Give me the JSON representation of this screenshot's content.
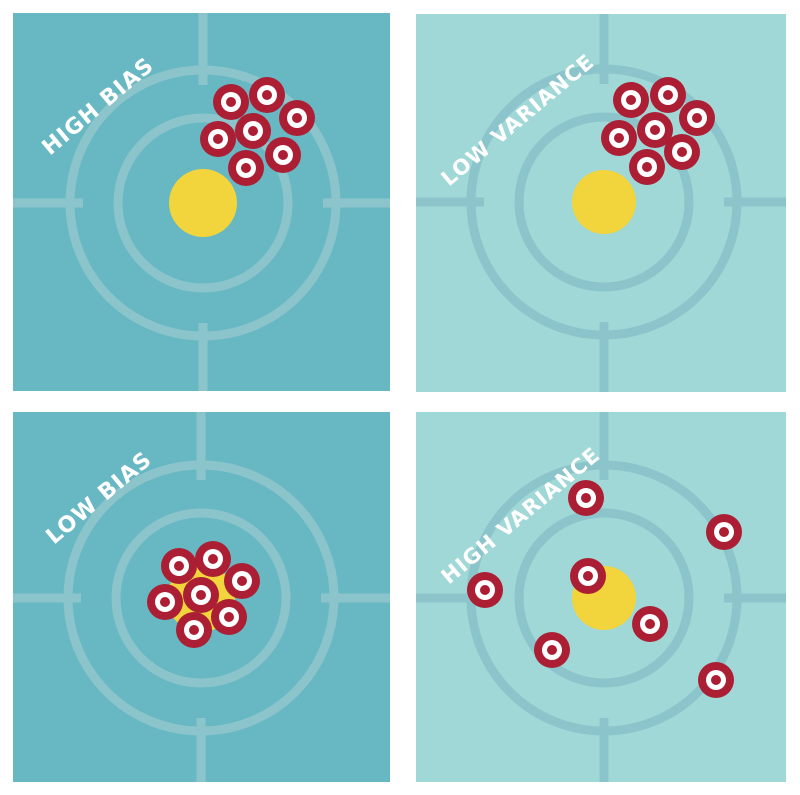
{
  "colors": {
    "background_dark": "#67b8c2",
    "background_light": "#9fd8d6",
    "ring": "#8cc4cc",
    "bullseye": "#f2d43d",
    "marker_outer": "#ab1e33",
    "marker_inner": "#ffffff",
    "label": "#ffffff"
  },
  "panels": [
    {
      "id": "tl",
      "label": "HIGH BIAS",
      "background": "dark"
    },
    {
      "id": "tr",
      "label": "LOW VARIANCE",
      "background": "light"
    },
    {
      "id": "bl",
      "label": "LOW BIAS",
      "background": "dark"
    },
    {
      "id": "br",
      "label": "HIGH VARIANCE",
      "background": "light"
    }
  ]
}
